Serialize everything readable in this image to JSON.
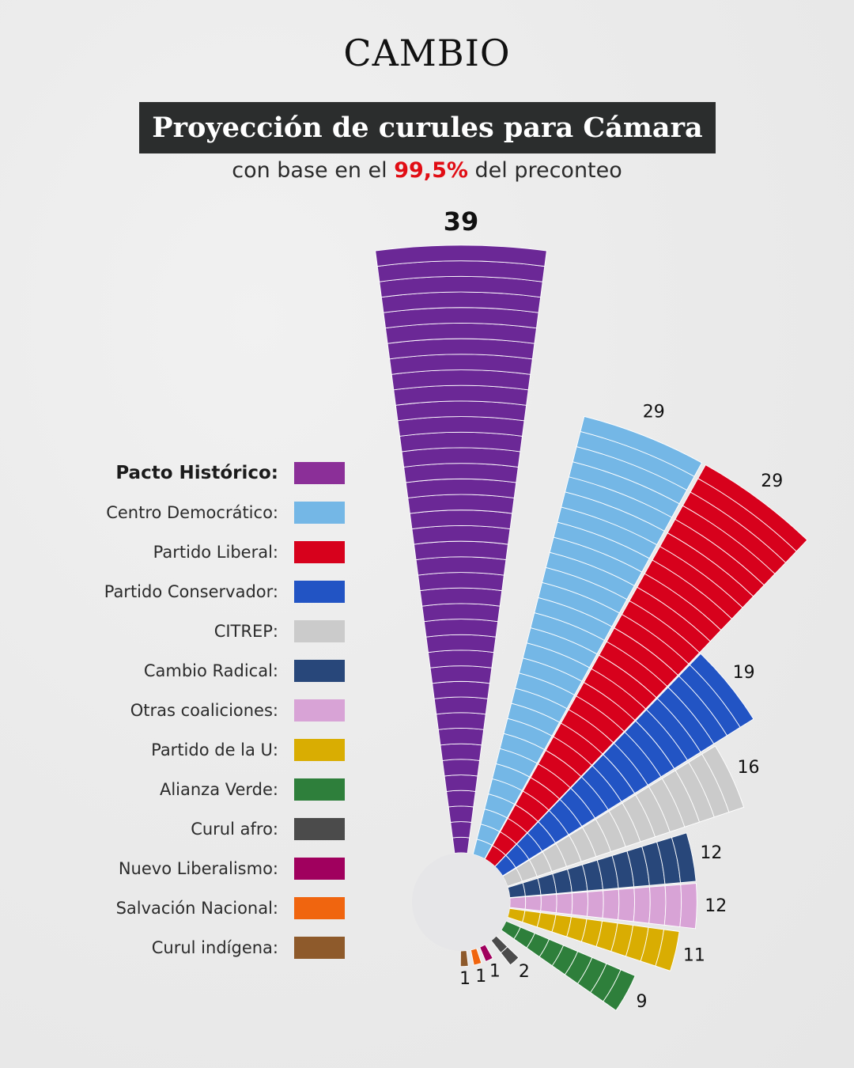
{
  "header": {
    "brand": "CAMBIO",
    "title": "Proyección de curules para Cámara",
    "subtitle_prefix": "con base en el ",
    "subtitle_highlight": "99,5%",
    "subtitle_suffix": " del preconteo",
    "highlight_color": "#e10d14"
  },
  "chart_data": {
    "type": "bar",
    "title": "Proyección de curules para Cámara",
    "subtitle": "con base en el 99,5% del preconteo",
    "layout": "radial-fan",
    "categories": [
      "Pacto Histórico",
      "Centro Democrático",
      "Partido Liberal",
      "Partido Conservador",
      "CITREP",
      "Cambio Radical",
      "Otras coaliciones",
      "Partido de la U",
      "Alianza Verde",
      "Curul afro",
      "Nuevo Liberalismo",
      "Salvación Nacional",
      "Curul indígena"
    ],
    "values": [
      39,
      29,
      29,
      19,
      16,
      12,
      12,
      11,
      9,
      2,
      1,
      1,
      1
    ],
    "value_labels": [
      "39",
      "29",
      "29",
      "19",
      "16",
      "12",
      "12",
      "11",
      "9",
      "2",
      "1",
      "1",
      "1"
    ],
    "colors": [
      "#6b2896",
      "#74b7e6",
      "#d7011c",
      "#2254c4",
      "#cbcbcb",
      "#28477a",
      "#d8a3d6",
      "#d9ad02",
      "#2e7f3b",
      "#4b4b4b",
      "#a0005e",
      "#f0650f",
      "#8e5a2b"
    ],
    "legend_colors": [
      "#8b2f98",
      "#74b7e6",
      "#d7011c",
      "#2254c4",
      "#cbcbcb",
      "#28477a",
      "#d8a3d6",
      "#d9ad02",
      "#2e7f3b",
      "#4b4b4b",
      "#a0005e",
      "#f0650f",
      "#8e5a2b"
    ],
    "legend_placement": "left",
    "grid": false
  },
  "legend": {
    "items": [
      {
        "label": "Pacto Histórico:"
      },
      {
        "label": "Centro Democrático:"
      },
      {
        "label": "Partido Liberal:"
      },
      {
        "label": "Partido Conservador:"
      },
      {
        "label": "CITREP:"
      },
      {
        "label": "Cambio Radical:"
      },
      {
        "label": "Otras coaliciones:"
      },
      {
        "label": "Partido de la U:"
      },
      {
        "label": "Alianza Verde:"
      },
      {
        "label": "Curul afro:"
      },
      {
        "label": "Nuevo Liberalismo:"
      },
      {
        "label": "Salvación Nacional:"
      },
      {
        "label": "Curul indígena:"
      }
    ]
  }
}
